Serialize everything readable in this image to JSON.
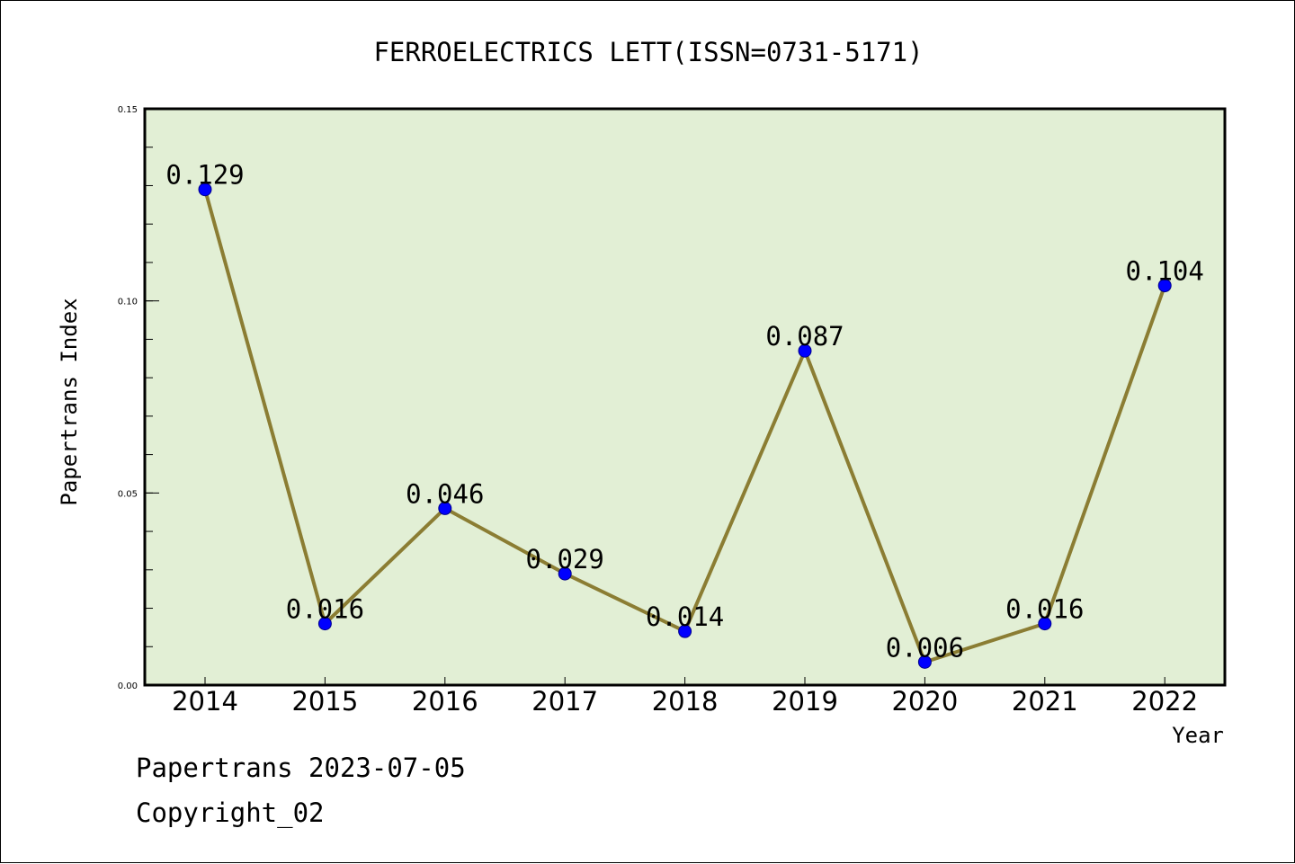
{
  "chart_data": {
    "type": "line",
    "title": "FERROELECTRICS LETT(ISSN=0731-5171)",
    "xlabel": "Year",
    "ylabel": "Papertrans Index",
    "categories": [
      "2014",
      "2015",
      "2016",
      "2017",
      "2018",
      "2019",
      "2020",
      "2021",
      "2022"
    ],
    "series": [
      {
        "values": [
          0.129,
          0.016,
          0.046,
          0.029,
          0.014,
          0.087,
          0.006,
          0.016,
          0.104
        ],
        "labels": [
          "0.129",
          "0.016",
          "0.046",
          "0.029",
          "0.014",
          "0.087",
          "0.006",
          "0.016",
          "0.104"
        ]
      }
    ],
    "ylim": [
      0,
      0.15
    ],
    "yticks": [
      0.0,
      0.05,
      0.1,
      0.15
    ],
    "ytick_labels": [
      "0.00",
      "0.05",
      "0.10",
      "0.15"
    ],
    "grid": false,
    "legend": "none",
    "colors": {
      "plot_background": "#e2efd5",
      "line": "#8b7d33",
      "marker": "#0000ff"
    }
  },
  "footer": {
    "date_line": "Papertrans 2023-07-05",
    "copyright": "Copyright_02"
  }
}
